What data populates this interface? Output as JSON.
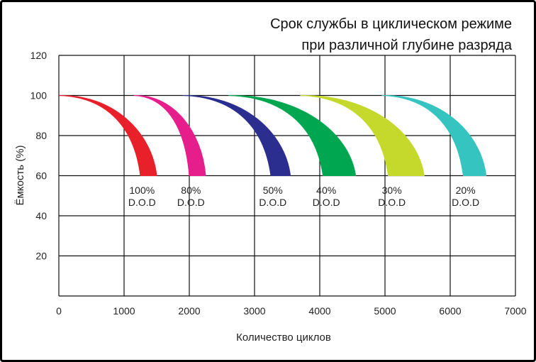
{
  "chart_data": {
    "type": "area",
    "title_lines": [
      "Срок службы в циклическом режиме",
      "при различной глубине разряда"
    ],
    "xlabel": "Количество циклов",
    "ylabel": "Ёмкость (%)",
    "xlim": [
      0,
      7000
    ],
    "ylim": [
      0,
      120
    ],
    "xticks": [
      "0",
      "1000",
      "2000",
      "3000",
      "4000",
      "5000",
      "6000",
      "7000"
    ],
    "yticks": [
      "20",
      "40",
      "60",
      "80",
      "100",
      "120"
    ],
    "grid": true,
    "series": [
      {
        "label": [
          "100%",
          "D.O.D"
        ],
        "color": "#e8202a",
        "start": 0,
        "inner_end": 1250,
        "outer_end": 1500,
        "min_capacity": 60
      },
      {
        "label": [
          "80%",
          "D.O.D"
        ],
        "color": "#e61e8c",
        "start": 1150,
        "inner_end": 2000,
        "outer_end": 2250,
        "min_capacity": 60
      },
      {
        "label": [
          "50%",
          "D.O.D"
        ],
        "color": "#2b2e8f",
        "start": 1900,
        "inner_end": 3250,
        "outer_end": 3550,
        "min_capacity": 60
      },
      {
        "label": [
          "40%",
          "D.O.D"
        ],
        "color": "#00a650",
        "start": 2600,
        "inner_end": 4050,
        "outer_end": 4550,
        "min_capacity": 60
      },
      {
        "label": [
          "30%",
          "D.O.D"
        ],
        "color": "#c5d92d",
        "start": 3700,
        "inner_end": 5050,
        "outer_end": 5600,
        "min_capacity": 60
      },
      {
        "label": [
          "20%",
          "D.O.D"
        ],
        "color": "#35c4c0",
        "start": 4950,
        "inner_end": 6200,
        "outer_end": 6550,
        "min_capacity": 60
      }
    ]
  }
}
